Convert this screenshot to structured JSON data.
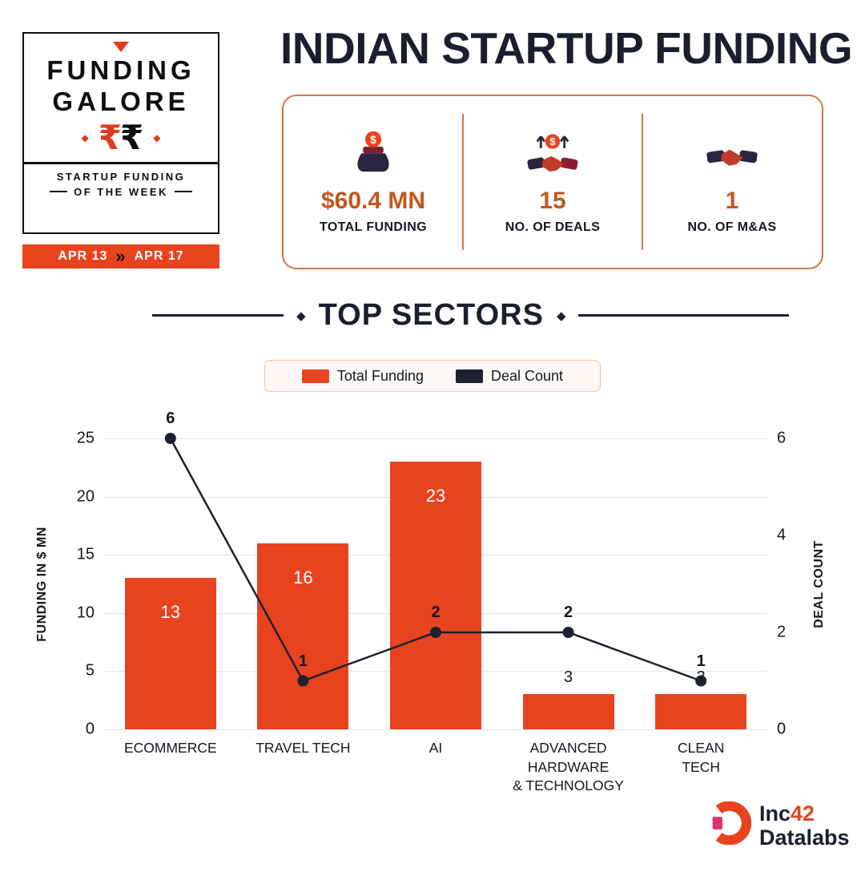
{
  "colors": {
    "accent": "#E8431F",
    "navy": "#1C2130",
    "stat_value": "#C2571E",
    "magenta": "#D9326E"
  },
  "badge": {
    "line1": "FUNDING",
    "line2": "GALORE",
    "rupee1": "₹",
    "rupee2": "₹",
    "diamond": "◆",
    "sub1": "STARTUP FUNDING",
    "sub2": "OF THE WEEK",
    "date_from": "APR 13",
    "date_to": "APR 17",
    "chevron": "»"
  },
  "header": {
    "title": "INDIAN STARTUP FUNDING"
  },
  "stats": [
    {
      "icon": "money-bag-icon",
      "value": "$60.4 MN",
      "label": "TOTAL FUNDING"
    },
    {
      "icon": "deals-handshake-icon",
      "value": "15",
      "label": "NO. OF DEALS"
    },
    {
      "icon": "mna-handshake-icon",
      "value": "1",
      "label": "NO. OF M&AS"
    }
  ],
  "section": {
    "title": "TOP SECTORS",
    "diamond": "◆"
  },
  "legend": [
    {
      "label": "Total Funding",
      "color": "#E8431F"
    },
    {
      "label": "Deal Count",
      "color": "#1C2130"
    }
  ],
  "chart_data": {
    "type": "combo",
    "title": "TOP SECTORS",
    "categories": [
      "ECOMMERCE",
      "TRAVEL TECH",
      "AI",
      "ADVANCED HARDWARE & TECHNOLOGY",
      "CLEAN TECH"
    ],
    "category_lines": [
      [
        "ECOMMERCE"
      ],
      [
        "TRAVEL TECH"
      ],
      [
        "AI"
      ],
      [
        "ADVANCED",
        "HARDWARE",
        "& TECHNOLOGY"
      ],
      [
        "CLEAN",
        "TECH"
      ]
    ],
    "series": [
      {
        "name": "Total Funding",
        "type": "bar",
        "axis": "left",
        "color": "#E8431F",
        "values": [
          13,
          16,
          23,
          3,
          3
        ]
      },
      {
        "name": "Deal Count",
        "type": "line",
        "axis": "right",
        "color": "#1C2130",
        "values": [
          6,
          1,
          2,
          2,
          1
        ]
      }
    ],
    "left_axis": {
      "label": "FUNDING IN $ MN",
      "min": 0,
      "max": 25,
      "ticks": [
        0,
        5,
        10,
        15,
        20,
        25
      ]
    },
    "right_axis": {
      "label": "DEAL COUNT",
      "min": 0,
      "max": 6,
      "ticks": [
        0,
        2,
        4,
        6
      ]
    },
    "grid": true,
    "legend_position": "top"
  },
  "footer": {
    "brand_prefix": "Inc",
    "brand_number": "42",
    "brand_suffix": "Datalabs"
  }
}
